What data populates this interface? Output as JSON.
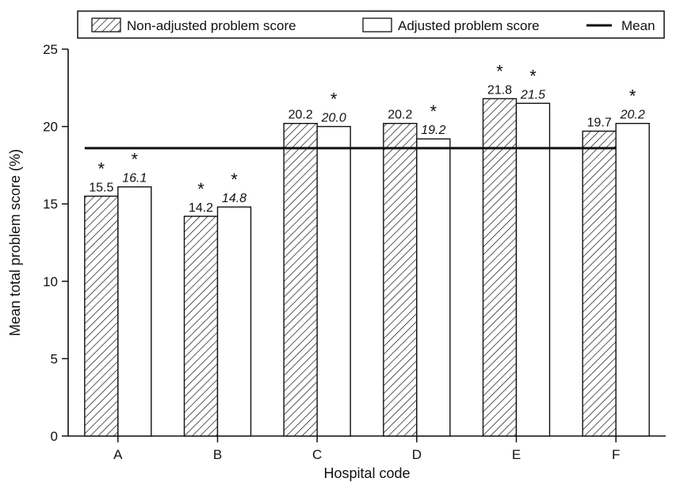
{
  "chart_data": {
    "type": "bar",
    "title": "",
    "xlabel": "Hospital code",
    "ylabel": "Mean total problem score (%)",
    "categories": [
      "A",
      "B",
      "C",
      "D",
      "E",
      "F"
    ],
    "ylim": [
      0,
      25
    ],
    "yticks": [
      0,
      5,
      10,
      15,
      20,
      25
    ],
    "series": [
      {
        "name": "Non-adjusted problem score",
        "pattern": "diagonal-hatch",
        "values": [
          15.5,
          14.2,
          20.2,
          20.2,
          21.8,
          19.7
        ],
        "labels": [
          "15.5",
          "14.2",
          "20.2",
          "20.2",
          "21.8",
          "19.7"
        ],
        "significant": [
          true,
          true,
          false,
          false,
          true,
          false
        ]
      },
      {
        "name": "Adjusted problem score",
        "pattern": "none",
        "label_style": "italic",
        "values": [
          16.1,
          14.8,
          20.0,
          19.2,
          21.5,
          20.2
        ],
        "labels": [
          "16.1",
          "14.8",
          "20.0",
          "19.2",
          "21.5",
          "20.2"
        ],
        "significant": [
          true,
          true,
          true,
          true,
          true,
          true
        ]
      }
    ],
    "mean": {
      "name": "Mean",
      "value": 18.6
    },
    "significance_marker": "*",
    "legend_position": "top",
    "grid": false,
    "colors": {
      "ink": "#111111",
      "background": "#ffffff"
    }
  }
}
